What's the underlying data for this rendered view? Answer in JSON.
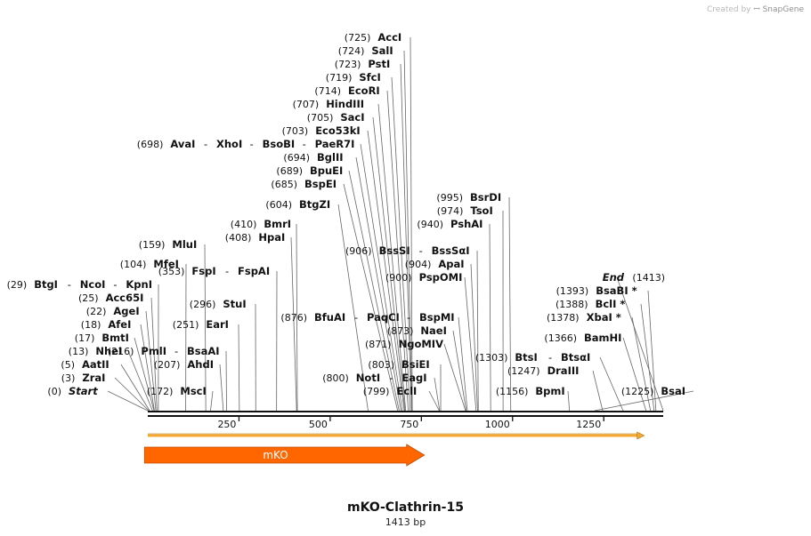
{
  "credit": {
    "prefix": "Created by",
    "brand": "SnapGene"
  },
  "title": "mKO-Clathrin-15",
  "length_label": "1413 bp",
  "sequence_length": 1413,
  "axis": {
    "ticks": [
      250,
      500,
      750,
      1000,
      1250
    ]
  },
  "features": [
    {
      "name": "mKO",
      "start": 30,
      "end": 712,
      "color": "#ff6600",
      "direction": "forward"
    }
  ],
  "orf": {
    "start": 0,
    "end": 1361,
    "color": "#f4a830"
  },
  "labels": [
    {
      "pos": "(0)",
      "names": [
        "Start"
      ],
      "site": 0,
      "italic": true
    },
    {
      "pos": "(3)",
      "names": [
        "ZraI"
      ],
      "site": 3
    },
    {
      "pos": "(5)",
      "names": [
        "AatII"
      ],
      "site": 5
    },
    {
      "pos": "(13)",
      "names": [
        "NheI"
      ],
      "site": 13
    },
    {
      "pos": "(17)",
      "names": [
        "BmtI"
      ],
      "site": 17
    },
    {
      "pos": "(18)",
      "names": [
        "AfeI"
      ],
      "site": 18
    },
    {
      "pos": "(22)",
      "names": [
        "AgeI"
      ],
      "site": 22
    },
    {
      "pos": "(25)",
      "names": [
        "Acc65I"
      ],
      "site": 25
    },
    {
      "pos": "(29)",
      "names": [
        "BtgI",
        "NcoI",
        "KpnI"
      ],
      "site": 29
    },
    {
      "pos": "(104)",
      "names": [
        "MfeI"
      ],
      "site": 104
    },
    {
      "pos": "(159)",
      "names": [
        "MluI"
      ],
      "site": 159
    },
    {
      "pos": "(172)",
      "names": [
        "MscI"
      ],
      "site": 172
    },
    {
      "pos": "(207)",
      "names": [
        "AhdI"
      ],
      "site": 207
    },
    {
      "pos": "(216)",
      "names": [
        "PmlI",
        "BsaAI"
      ],
      "site": 216
    },
    {
      "pos": "(251)",
      "names": [
        "EarI"
      ],
      "site": 251
    },
    {
      "pos": "(296)",
      "names": [
        "StuI"
      ],
      "site": 296
    },
    {
      "pos": "(353)",
      "names": [
        "FspI",
        "FspAI"
      ],
      "site": 353
    },
    {
      "pos": "(408)",
      "names": [
        "HpaI"
      ],
      "site": 408
    },
    {
      "pos": "(410)",
      "names": [
        "BmrI"
      ],
      "site": 410
    },
    {
      "pos": "(604)",
      "names": [
        "BtgZI"
      ],
      "site": 604
    },
    {
      "pos": "(685)",
      "names": [
        "BspEI"
      ],
      "site": 685
    },
    {
      "pos": "(689)",
      "names": [
        "BpuEI"
      ],
      "site": 689
    },
    {
      "pos": "(694)",
      "names": [
        "BglII"
      ],
      "site": 694
    },
    {
      "pos": "(698)",
      "names": [
        "AvaI",
        "XhoI",
        "BsoBI",
        "PaeR7I"
      ],
      "site": 698
    },
    {
      "pos": "(703)",
      "names": [
        "Eco53kI"
      ],
      "site": 703
    },
    {
      "pos": "(705)",
      "names": [
        "SacI"
      ],
      "site": 705
    },
    {
      "pos": "(707)",
      "names": [
        "HindIII"
      ],
      "site": 707
    },
    {
      "pos": "(714)",
      "names": [
        "EcoRI"
      ],
      "site": 714
    },
    {
      "pos": "(719)",
      "names": [
        "SfcI"
      ],
      "site": 719
    },
    {
      "pos": "(723)",
      "names": [
        "PstI"
      ],
      "site": 723
    },
    {
      "pos": "(724)",
      "names": [
        "SalI"
      ],
      "site": 724
    },
    {
      "pos": "(725)",
      "names": [
        "AccI"
      ],
      "site": 725
    },
    {
      "pos": "(799)",
      "names": [
        "EclI"
      ],
      "site": 799
    },
    {
      "pos": "(800)",
      "names": [
        "NotI",
        "EagI"
      ],
      "site": 800
    },
    {
      "pos": "(803)",
      "names": [
        "BsiEI"
      ],
      "site": 803
    },
    {
      "pos": "(871)",
      "names": [
        "NgoMIV"
      ],
      "site": 871
    },
    {
      "pos": "(873)",
      "names": [
        "NaeI"
      ],
      "site": 873
    },
    {
      "pos": "(876)",
      "names": [
        "BfuAI",
        "PaqCI",
        "BspMI"
      ],
      "site": 876
    },
    {
      "pos": "(900)",
      "names": [
        "PspOMI"
      ],
      "site": 900
    },
    {
      "pos": "(904)",
      "names": [
        "ApaI"
      ],
      "site": 904
    },
    {
      "pos": "(906)",
      "names": [
        "BssSI",
        "BssSαI"
      ],
      "site": 906
    },
    {
      "pos": "(940)",
      "names": [
        "PshAI"
      ],
      "site": 940
    },
    {
      "pos": "(974)",
      "names": [
        "TsoI"
      ],
      "site": 974
    },
    {
      "pos": "(995)",
      "names": [
        "BsrDI"
      ],
      "site": 995
    },
    {
      "pos": "(1156)",
      "names": [
        "BpmI"
      ],
      "site": 1156
    },
    {
      "pos": "(1225)",
      "names": [
        "BsaI"
      ],
      "site": 1225
    },
    {
      "pos": "(1247)",
      "names": [
        "DraIII"
      ],
      "site": 1247
    },
    {
      "pos": "(1303)",
      "names": [
        "BtsI",
        "BtsαI"
      ],
      "site": 1303
    },
    {
      "pos": "(1366)",
      "names": [
        "BamHI"
      ],
      "site": 1366
    },
    {
      "pos": "(1378)",
      "names": [
        "XbaI *"
      ],
      "site": 1378
    },
    {
      "pos": "(1388)",
      "names": [
        "BclI *"
      ],
      "site": 1388
    },
    {
      "pos": "(1393)",
      "names": [
        "BsaBI *"
      ],
      "site": 1393
    },
    {
      "pos": "(1413)",
      "names": [
        "End"
      ],
      "site": 1413,
      "italic": true,
      "pos_after": true
    }
  ]
}
